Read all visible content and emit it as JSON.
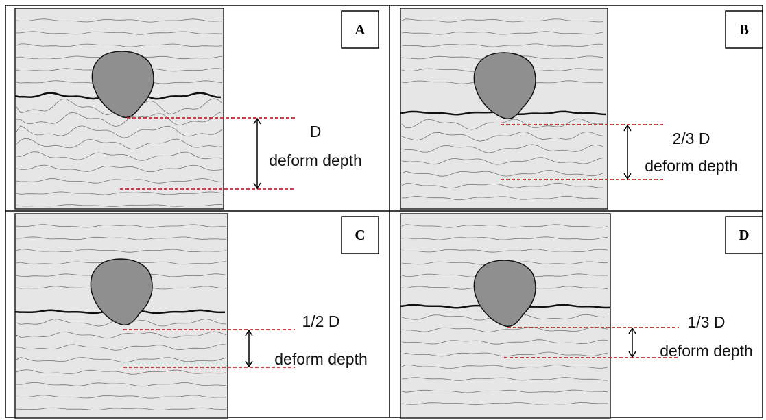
{
  "panels": [
    {
      "label": "A",
      "depth": "D",
      "caption": "deform depth"
    },
    {
      "label": "B",
      "depth": "2/3 D",
      "caption": "deform depth"
    },
    {
      "label": "C",
      "depth": "1/2 D",
      "caption": "deform depth"
    },
    {
      "label": "D",
      "depth": "1/3 D",
      "caption": "deform depth"
    }
  ]
}
